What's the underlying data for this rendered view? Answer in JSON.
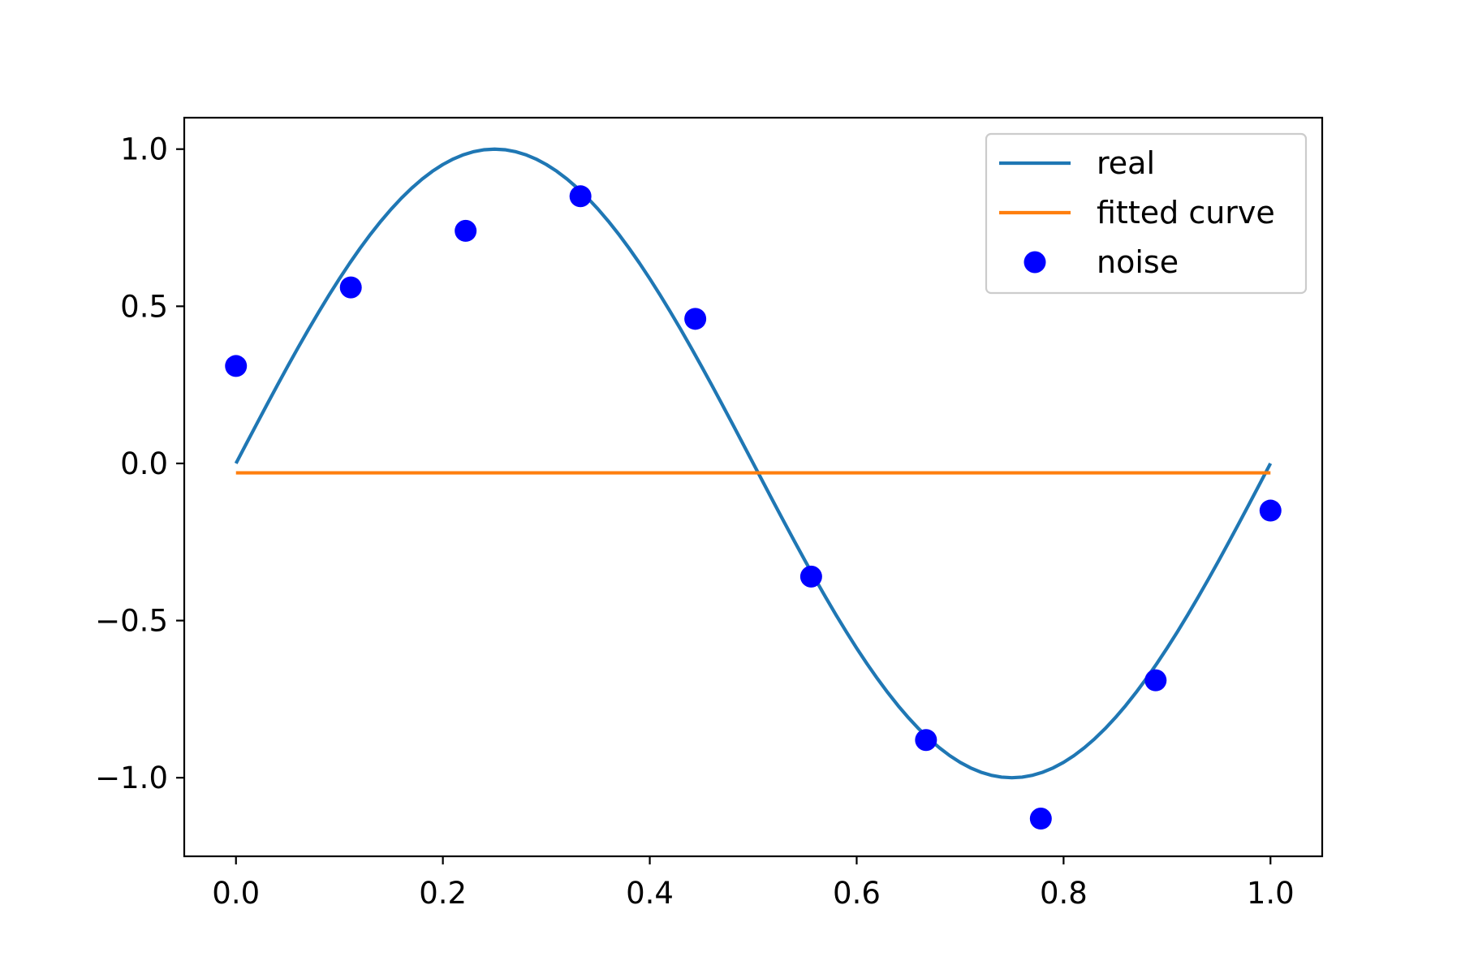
{
  "chart_data": {
    "type": "line",
    "title": "",
    "xlabel": "",
    "ylabel": "",
    "xlim": [
      -0.05,
      1.05
    ],
    "ylim": [
      -1.25,
      1.1
    ],
    "x_ticks": [
      0.0,
      0.2,
      0.4,
      0.6,
      0.8,
      1.0
    ],
    "x_tick_labels": [
      "0.0",
      "0.2",
      "0.4",
      "0.6",
      "0.8",
      "1.0"
    ],
    "y_ticks": [
      1.0,
      0.5,
      0.0,
      -0.5,
      -1.0
    ],
    "y_tick_labels": [
      "1.0",
      "0.5",
      "0.0",
      "−0.5",
      "−1.0"
    ],
    "grid": false,
    "legend_position": "top-right",
    "series": [
      {
        "name": "real",
        "kind": "line",
        "color": "#1f77b4",
        "function": "sin(2*pi*x)",
        "x_range": [
          0,
          1
        ],
        "samples": 101
      },
      {
        "name": "fitted curve",
        "kind": "line",
        "color": "#ff7f0e",
        "x": [
          0.0,
          1.0
        ],
        "y": [
          -0.03,
          -0.03
        ]
      },
      {
        "name": "noise",
        "kind": "scatter",
        "color": "#0000ff",
        "x": [
          0.0,
          0.111,
          0.222,
          0.333,
          0.444,
          0.556,
          0.667,
          0.778,
          0.889,
          1.0
        ],
        "y": [
          0.31,
          0.56,
          0.74,
          0.85,
          0.46,
          -0.36,
          -0.88,
          -1.13,
          -0.69,
          -0.15
        ]
      }
    ]
  }
}
